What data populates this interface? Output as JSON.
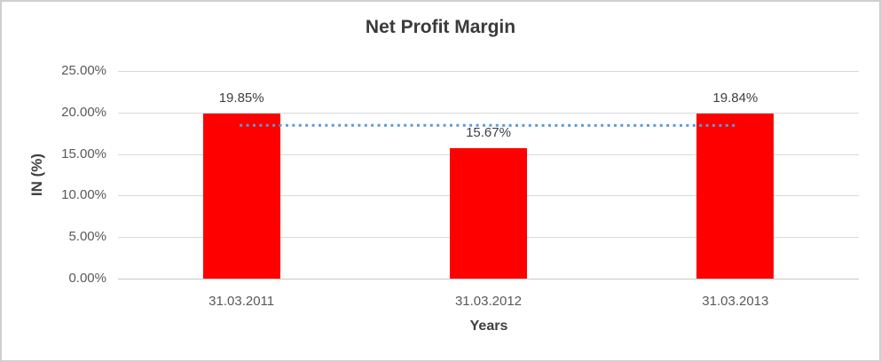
{
  "chart_data": {
    "type": "bar",
    "title": "Net Profit Margin",
    "xlabel": "Years",
    "ylabel": "IN (%)",
    "categories": [
      "31.03.2011",
      "31.03.2012",
      "31.03.2013"
    ],
    "values": [
      19.85,
      15.67,
      19.84
    ],
    "value_labels": [
      "19.85%",
      "15.67%",
      "19.84%"
    ],
    "ylim": [
      0,
      25
    ],
    "y_ticks": [
      {
        "value": 0,
        "label": "0.00%"
      },
      {
        "value": 5,
        "label": "5.00%"
      },
      {
        "value": 10,
        "label": "10.00%"
      },
      {
        "value": 15,
        "label": "15.00%"
      },
      {
        "value": 20,
        "label": "20.00%"
      },
      {
        "value": 25,
        "label": "25.00%"
      }
    ],
    "grid": true,
    "legend": "none",
    "bar_color": "#ff0000",
    "trendline": {
      "type": "linear",
      "style": "dotted",
      "color": "#5b9bd5",
      "start_value": 18.46,
      "end_value": 18.44
    }
  },
  "colors": {
    "gridline": "#d9d9d9",
    "axis_line": "#c6c6c6"
  }
}
